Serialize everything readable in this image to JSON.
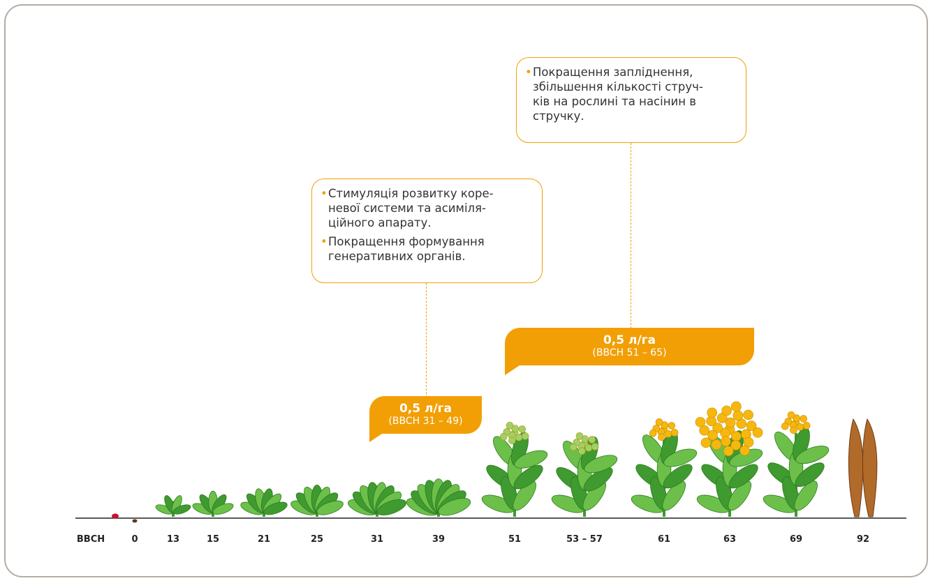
{
  "stages": {
    "label": "BBCH",
    "values": [
      "0",
      "13",
      "15",
      "21",
      "25",
      "31",
      "39",
      "51",
      "53 – 57",
      "61",
      "63",
      "69",
      "92"
    ]
  },
  "callouts": [
    {
      "items": [
        [
          "Стимуляція розвитку коре-",
          "невої системи та асиміля-",
          "ційного апарату."
        ],
        [
          "Покращення формування",
          "генеративних органів."
        ]
      ]
    },
    {
      "items": [
        [
          "Покращення запліднення,",
          "збільшення кількості струч-",
          "ків на рослині та насінин в",
          "стручку."
        ]
      ]
    }
  ],
  "doses": [
    {
      "rate": "0,5 л/га",
      "range": "(BBCH 31 – 49)"
    },
    {
      "rate": "0,5 л/га",
      "range": "(BBCH 51 – 65)"
    }
  ]
}
